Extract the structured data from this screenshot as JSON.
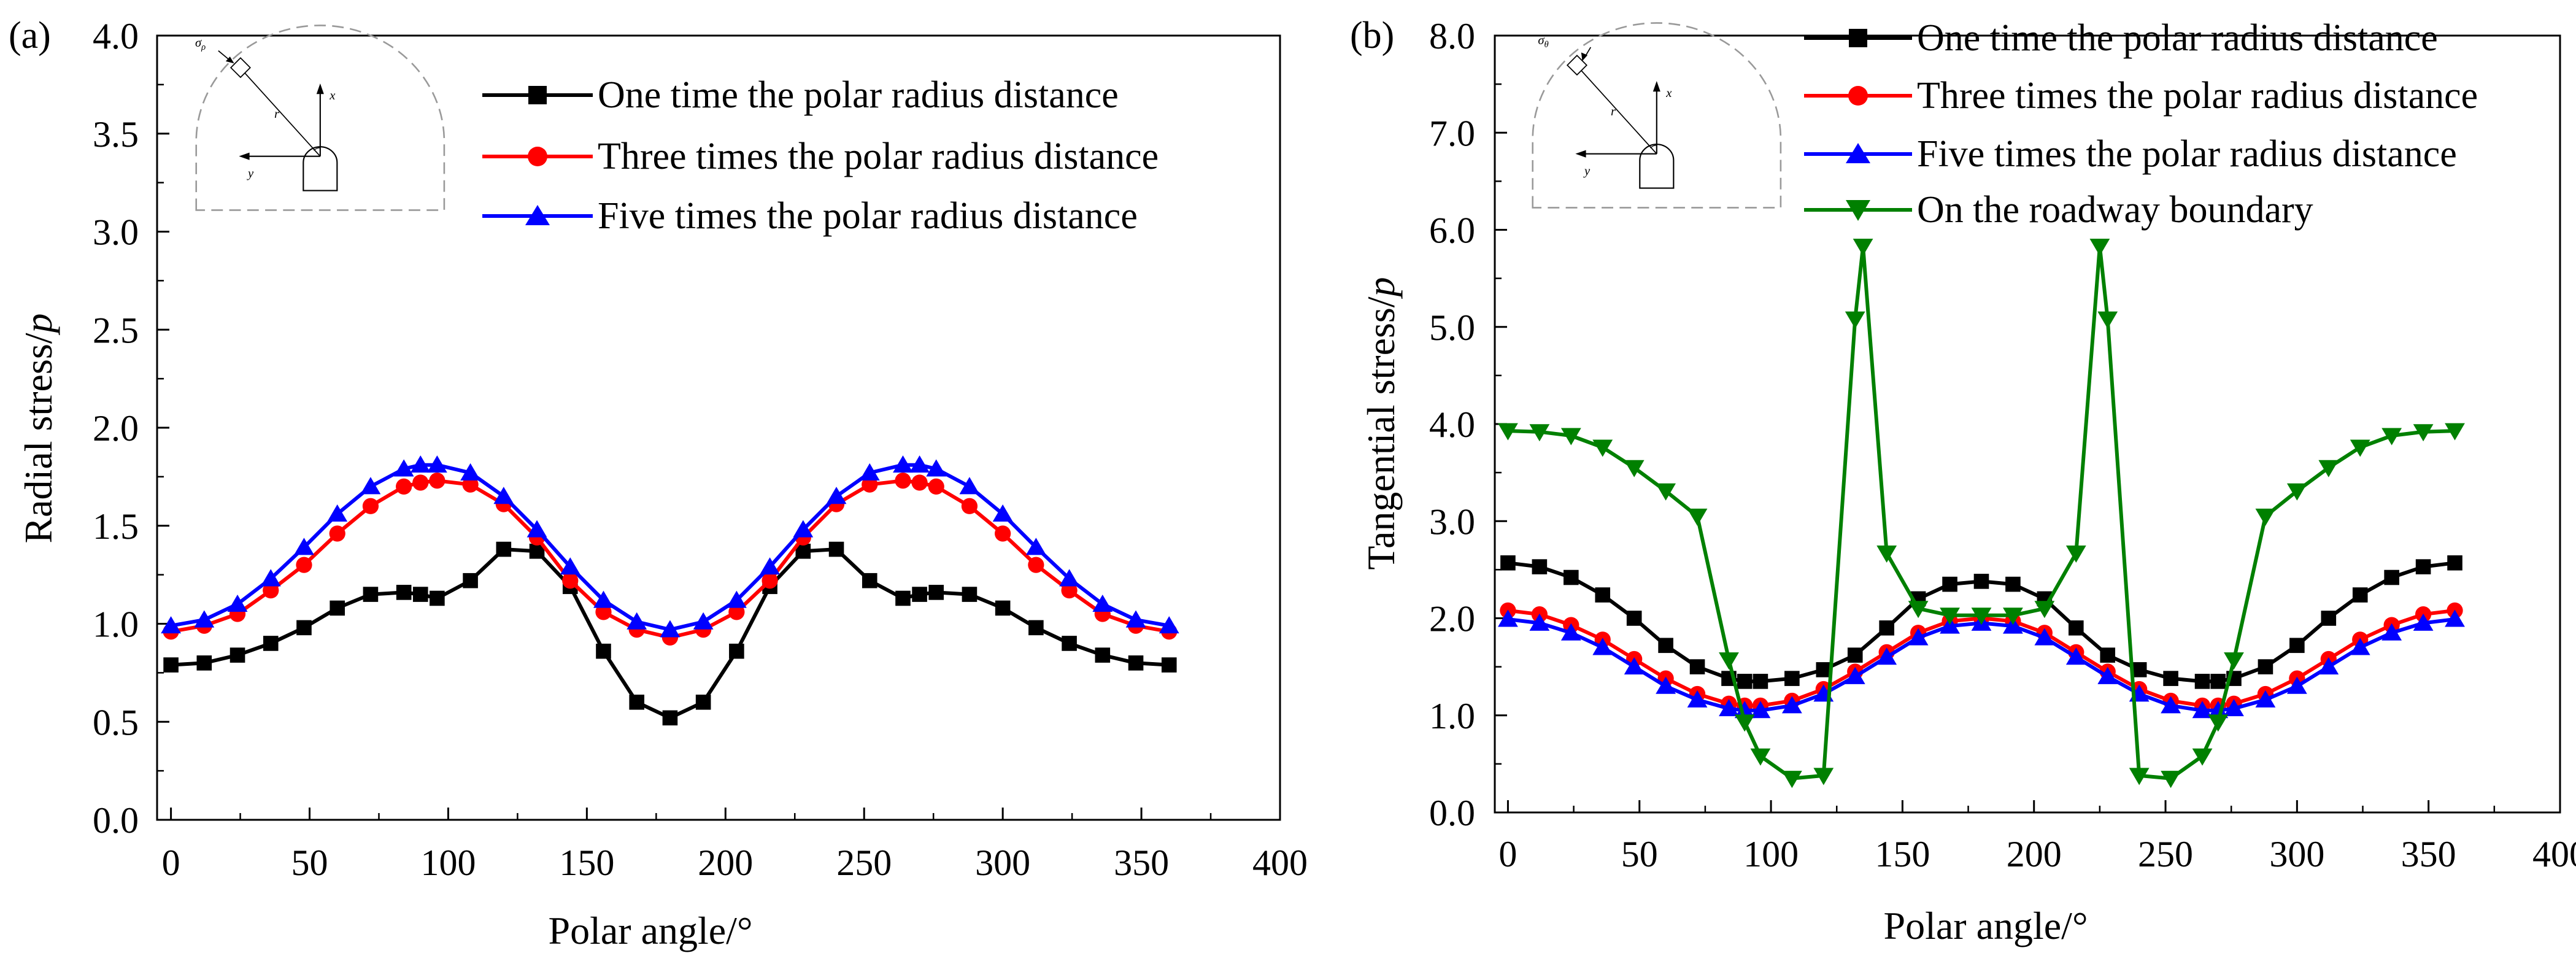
{
  "figure": {
    "panels": [
      "(a)",
      "(b)"
    ]
  },
  "chart_data": [
    {
      "type": "line",
      "label": "(a)",
      "xlabel": "Polar angle/°",
      "ylabel": "Radial stress/",
      "ylabel_italic": "p",
      "xlim": [
        -5,
        400
      ],
      "ylim": [
        0,
        4.0
      ],
      "xticks": [
        0,
        50,
        100,
        150,
        200,
        250,
        300,
        350,
        400
      ],
      "yticks": [
        "0.0",
        "0.5",
        "1.0",
        "1.5",
        "2.0",
        "2.5",
        "3.0",
        "3.5",
        "4.0"
      ],
      "inset": {
        "stress_symbol": "σ",
        "stress_sub": "ρ",
        "r": "r",
        "x": "x",
        "y": "y"
      },
      "series": [
        {
          "name": "One time the polar radius distance",
          "color": "#000000",
          "marker": "square",
          "x": [
            0,
            12,
            24,
            36,
            48,
            60,
            72,
            84,
            90,
            96,
            108,
            120,
            132,
            144,
            156,
            168,
            180,
            192,
            204,
            216,
            228,
            240,
            252,
            264,
            270,
            276,
            288,
            300,
            312,
            324,
            336,
            348,
            360
          ],
          "y": [
            0.79,
            0.8,
            0.84,
            0.9,
            0.98,
            1.08,
            1.15,
            1.16,
            1.15,
            1.13,
            1.22,
            1.38,
            1.37,
            1.19,
            0.86,
            0.6,
            0.52,
            0.6,
            0.86,
            1.19,
            1.37,
            1.38,
            1.22,
            1.13,
            1.15,
            1.16,
            1.15,
            1.08,
            0.98,
            0.9,
            0.84,
            0.8,
            0.79
          ]
        },
        {
          "name": "Three times the polar radius distance",
          "color": "#ff0000",
          "marker": "circle",
          "x": [
            0,
            12,
            24,
            36,
            48,
            60,
            72,
            84,
            90,
            96,
            108,
            120,
            132,
            144,
            156,
            168,
            180,
            192,
            204,
            216,
            228,
            240,
            252,
            264,
            270,
            276,
            288,
            300,
            312,
            324,
            336,
            348,
            360
          ],
          "y": [
            0.96,
            0.99,
            1.05,
            1.17,
            1.3,
            1.46,
            1.6,
            1.7,
            1.72,
            1.73,
            1.71,
            1.61,
            1.44,
            1.22,
            1.06,
            0.97,
            0.93,
            0.97,
            1.06,
            1.22,
            1.44,
            1.61,
            1.71,
            1.73,
            1.72,
            1.7,
            1.6,
            1.46,
            1.3,
            1.17,
            1.05,
            0.99,
            0.96
          ]
        },
        {
          "name": "Five times the polar radius distance",
          "color": "#0000ff",
          "marker": "triangle-up",
          "x": [
            0,
            12,
            24,
            36,
            48,
            60,
            72,
            84,
            90,
            96,
            108,
            120,
            132,
            144,
            156,
            168,
            180,
            192,
            204,
            216,
            228,
            240,
            252,
            264,
            270,
            276,
            288,
            300,
            312,
            324,
            336,
            348,
            360
          ],
          "y": [
            0.99,
            1.02,
            1.1,
            1.23,
            1.39,
            1.56,
            1.7,
            1.79,
            1.81,
            1.81,
            1.77,
            1.65,
            1.48,
            1.29,
            1.12,
            1.01,
            0.97,
            1.01,
            1.12,
            1.29,
            1.48,
            1.65,
            1.77,
            1.81,
            1.81,
            1.79,
            1.7,
            1.56,
            1.39,
            1.23,
            1.1,
            1.02,
            0.99
          ]
        }
      ]
    },
    {
      "type": "line",
      "label": "(b)",
      "xlabel": "Polar angle/°",
      "ylabel": "Tangential stress/",
      "ylabel_italic": "p",
      "xlim": [
        -5,
        400
      ],
      "ylim": [
        0,
        8.0
      ],
      "xticks": [
        0,
        50,
        100,
        150,
        200,
        250,
        300,
        350,
        400
      ],
      "yticks": [
        "0.0",
        "1.0",
        "2.0",
        "3.0",
        "4.0",
        "5.0",
        "6.0",
        "7.0",
        "8.0"
      ],
      "inset": {
        "stress_symbol": "σ",
        "stress_sub": "θ",
        "r": "r",
        "x": "x",
        "y": "y"
      },
      "series": [
        {
          "name": "One time the polar radius distance",
          "color": "#000000",
          "marker": "square",
          "x": [
            0,
            12,
            24,
            36,
            48,
            60,
            72,
            84,
            90,
            96,
            108,
            120,
            132,
            144,
            156,
            168,
            180,
            192,
            204,
            216,
            228,
            240,
            252,
            264,
            270,
            276,
            288,
            300,
            312,
            324,
            336,
            348,
            360
          ],
          "y": [
            2.57,
            2.53,
            2.42,
            2.24,
            2.0,
            1.72,
            1.5,
            1.38,
            1.35,
            1.35,
            1.38,
            1.47,
            1.62,
            1.9,
            2.2,
            2.35,
            2.38,
            2.35,
            2.2,
            1.9,
            1.62,
            1.47,
            1.38,
            1.35,
            1.35,
            1.38,
            1.5,
            1.72,
            2.0,
            2.24,
            2.42,
            2.53,
            2.57
          ]
        },
        {
          "name": "Three times the polar radius distance",
          "color": "#ff0000",
          "marker": "circle",
          "x": [
            0,
            12,
            24,
            36,
            48,
            60,
            72,
            84,
            90,
            96,
            108,
            120,
            132,
            144,
            156,
            168,
            180,
            192,
            204,
            216,
            228,
            240,
            252,
            264,
            270,
            276,
            288,
            300,
            312,
            324,
            336,
            348,
            360
          ],
          "y": [
            2.08,
            2.04,
            1.93,
            1.78,
            1.58,
            1.38,
            1.22,
            1.12,
            1.1,
            1.1,
            1.15,
            1.27,
            1.45,
            1.65,
            1.85,
            1.97,
            2.0,
            1.97,
            1.85,
            1.65,
            1.45,
            1.27,
            1.15,
            1.1,
            1.1,
            1.12,
            1.22,
            1.38,
            1.58,
            1.78,
            1.93,
            2.04,
            2.08
          ]
        },
        {
          "name": "Five times the polar radius distance",
          "color": "#0000ff",
          "marker": "triangle-up",
          "x": [
            0,
            12,
            24,
            36,
            48,
            60,
            72,
            84,
            90,
            96,
            108,
            120,
            132,
            144,
            156,
            168,
            180,
            192,
            204,
            216,
            228,
            240,
            252,
            264,
            270,
            276,
            288,
            300,
            312,
            324,
            336,
            348,
            360
          ],
          "y": [
            1.99,
            1.95,
            1.85,
            1.7,
            1.5,
            1.3,
            1.16,
            1.07,
            1.05,
            1.05,
            1.1,
            1.22,
            1.4,
            1.6,
            1.8,
            1.92,
            1.95,
            1.92,
            1.8,
            1.6,
            1.4,
            1.22,
            1.1,
            1.05,
            1.05,
            1.07,
            1.16,
            1.3,
            1.5,
            1.7,
            1.85,
            1.95,
            1.99
          ]
        },
        {
          "name": "On the roadway boundary",
          "color": "#008000",
          "marker": "triangle-down",
          "x": [
            0,
            12,
            24,
            36,
            48,
            60,
            72,
            84,
            90,
            96,
            108,
            120,
            132,
            135,
            144,
            156,
            168,
            180,
            192,
            204,
            216,
            225,
            228,
            240,
            252,
            264,
            270,
            276,
            288,
            300,
            312,
            324,
            336,
            348,
            360
          ],
          "y": [
            3.93,
            3.92,
            3.88,
            3.76,
            3.55,
            3.31,
            3.05,
            1.57,
            0.93,
            0.58,
            0.35,
            0.38,
            5.08,
            5.83,
            2.67,
            2.1,
            2.03,
            2.03,
            2.03,
            2.1,
            2.67,
            5.83,
            5.08,
            0.38,
            0.35,
            0.58,
            0.93,
            1.57,
            3.05,
            3.31,
            3.55,
            3.76,
            3.88,
            3.92,
            3.93
          ]
        }
      ]
    }
  ]
}
